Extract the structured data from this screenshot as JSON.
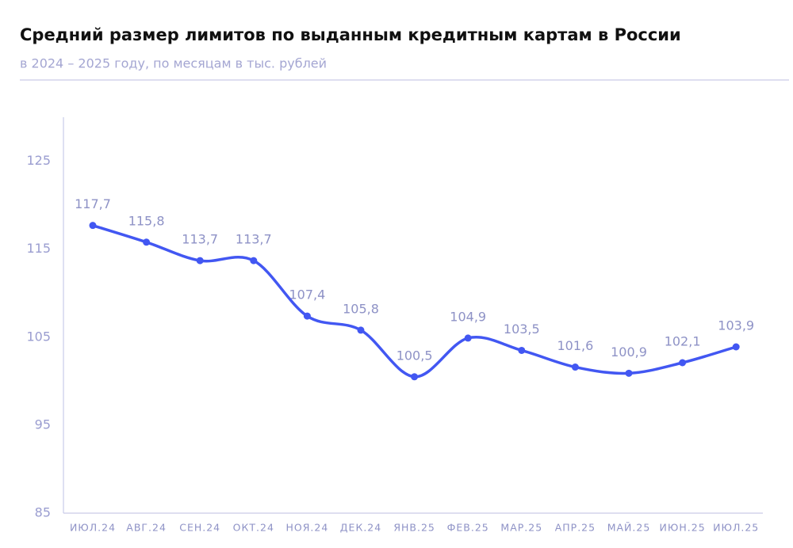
{
  "chart_data": {
    "type": "line",
    "title": "Средний размер лимитов по выданным кредитным картам в России",
    "subtitle": "в 2024 – 2025 году, по месяцам в тыс. рублей",
    "categories": [
      "ИЮЛ.24",
      "АВГ.24",
      "СЕН.24",
      "ОКТ.24",
      "НОЯ.24",
      "ДЕК.24",
      "ЯНВ.25",
      "ФЕВ.25",
      "МАР.25",
      "АПР.25",
      "МАЙ.25",
      "ИЮН.25",
      "ИЮЛ.25"
    ],
    "values": [
      117.7,
      115.8,
      113.7,
      113.7,
      107.4,
      105.8,
      100.5,
      104.9,
      103.5,
      101.6,
      100.9,
      102.1,
      103.9
    ],
    "value_labels": [
      "117,7",
      "115,8",
      "113,7",
      "113,7",
      "107,4",
      "105,8",
      "100,5",
      "104,9",
      "103,5",
      "101,6",
      "100,9",
      "102,1",
      "103,9"
    ],
    "color": "#4257f2",
    "ylim": [
      85,
      130
    ],
    "yticks": [
      85,
      95,
      105,
      115,
      125
    ],
    "grid": false
  }
}
